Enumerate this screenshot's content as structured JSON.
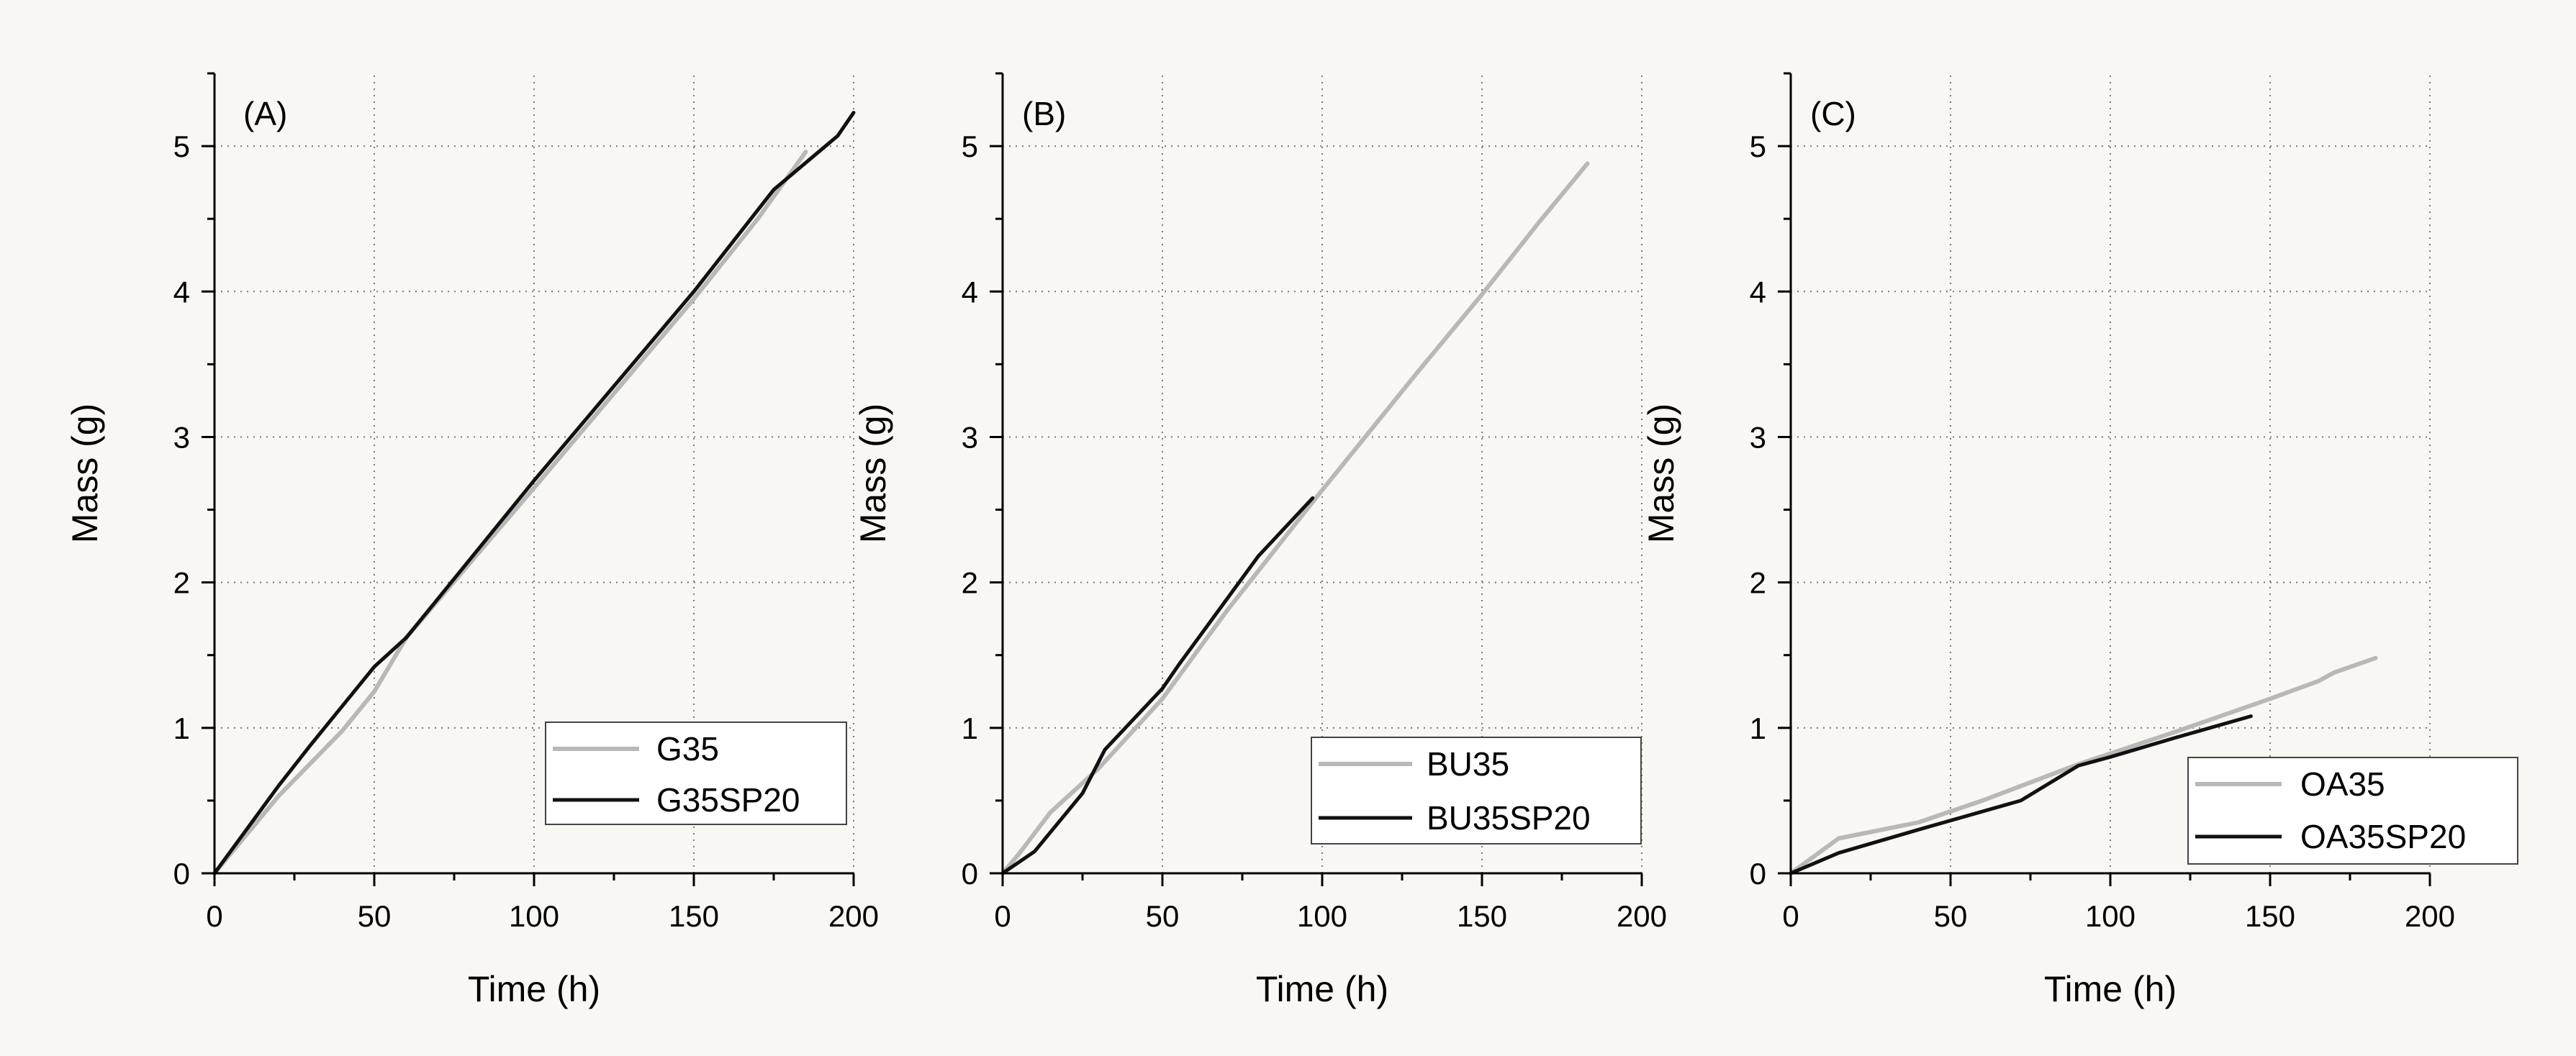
{
  "colors": {
    "background": "#f9f7f4",
    "gray_series": "#b8b8b8",
    "black_series": "#111111",
    "grid": "#7a7a7a"
  },
  "chart_data": [
    {
      "type": "line",
      "panel_label": "(A)",
      "xlabel": "Time (h)",
      "ylabel": "Mass (g)",
      "xlim": [
        0,
        200
      ],
      "ylim": [
        0,
        5.5
      ],
      "xticks": [
        0,
        50,
        100,
        150,
        200
      ],
      "yticks": [
        0,
        1,
        2,
        3,
        4,
        5
      ],
      "grid": true,
      "legend_position": "bottom-right",
      "series": [
        {
          "name": "G35",
          "color_key": "gray_series",
          "x": [
            0,
            20,
            40,
            50,
            60,
            100,
            150,
            170,
            185
          ],
          "y": [
            0,
            0.53,
            0.98,
            1.25,
            1.62,
            2.65,
            3.95,
            4.5,
            4.96
          ]
        },
        {
          "name": "G35SP20",
          "color_key": "black_series",
          "x": [
            0,
            20,
            30,
            50,
            60,
            100,
            150,
            175,
            195,
            200
          ],
          "y": [
            0,
            0.6,
            0.88,
            1.42,
            1.62,
            2.7,
            4.0,
            4.7,
            5.07,
            5.23
          ]
        }
      ]
    },
    {
      "type": "line",
      "panel_label": "(B)",
      "xlabel": "Time (h)",
      "ylabel": "Mass (g)",
      "xlim": [
        0,
        200
      ],
      "ylim": [
        0,
        5.5
      ],
      "xticks": [
        0,
        50,
        100,
        150,
        200
      ],
      "yticks": [
        0,
        1,
        2,
        3,
        4,
        5
      ],
      "grid": true,
      "legend_position": "bottom-right",
      "series": [
        {
          "name": "BU35",
          "color_key": "gray_series",
          "x": [
            0,
            5,
            15,
            30,
            50,
            70,
            98,
            130,
            150,
            168,
            183
          ],
          "y": [
            0,
            0.13,
            0.42,
            0.72,
            1.2,
            1.8,
            2.58,
            3.45,
            3.98,
            4.48,
            4.88
          ]
        },
        {
          "name": "BU35SP20",
          "color_key": "black_series",
          "x": [
            0,
            10,
            25,
            32,
            50,
            55,
            70,
            80,
            97
          ],
          "y": [
            0,
            0.15,
            0.55,
            0.85,
            1.27,
            1.43,
            1.88,
            2.18,
            2.58
          ]
        }
      ]
    },
    {
      "type": "line",
      "panel_label": "(C)",
      "xlabel": "Time (h)",
      "ylabel": "Mass (g)",
      "xlim": [
        0,
        200
      ],
      "ylim": [
        0,
        5.5
      ],
      "xticks": [
        0,
        50,
        100,
        150,
        200
      ],
      "yticks": [
        0,
        1,
        2,
        3,
        4,
        5
      ],
      "grid": true,
      "legend_position": "bottom-right",
      "series": [
        {
          "name": "OA35",
          "color_key": "gray_series",
          "x": [
            0,
            15,
            40,
            60,
            90,
            120,
            150,
            165,
            170,
            183
          ],
          "y": [
            0,
            0.24,
            0.35,
            0.5,
            0.75,
            0.97,
            1.2,
            1.32,
            1.38,
            1.48
          ]
        },
        {
          "name": "OA35SP20",
          "color_key": "black_series",
          "x": [
            0,
            15,
            40,
            72,
            90,
            100,
            120,
            144
          ],
          "y": [
            0,
            0.14,
            0.3,
            0.5,
            0.74,
            0.8,
            0.93,
            1.08
          ]
        }
      ]
    }
  ]
}
